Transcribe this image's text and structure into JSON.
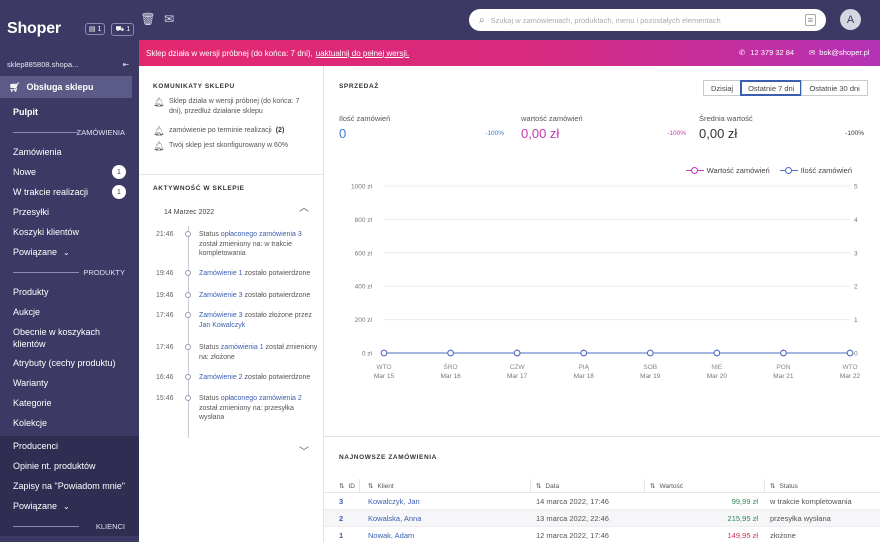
{
  "app": {
    "logo": "Shoper",
    "badge_docs": "1",
    "badge_cart": "1",
    "shop_name": "sklep885808.shopa...",
    "shop_service": "Obsługa sklepu"
  },
  "sidebar": {
    "items": [
      {
        "label": "Pulpit",
        "active": true
      },
      {
        "section": "ZAMÓWIENIA"
      },
      {
        "label": "Zamówienia"
      },
      {
        "label": "Nowe",
        "count": "1"
      },
      {
        "label": "W trakcie realizacji",
        "count": "1"
      },
      {
        "label": "Przesyłki"
      },
      {
        "label": "Koszyki klientów"
      },
      {
        "label": "Powiązane",
        "related": true
      },
      {
        "section": "PRODUKTY"
      },
      {
        "label": "Produkty"
      },
      {
        "label": "Aukcje"
      },
      {
        "label": "Obecnie w koszykach klientów",
        "tall": true
      },
      {
        "label": "Atrybuty (cechy produktu)"
      },
      {
        "label": "Warianty"
      },
      {
        "label": "Kategorie"
      },
      {
        "label": "Kolekcje"
      }
    ],
    "lower": [
      {
        "label": "Producenci"
      },
      {
        "label": "Opinie nt. produktów"
      },
      {
        "label": "Zapisy na \"Powiadom mnie\""
      },
      {
        "label": "Powiązane",
        "related": true
      },
      {
        "section": "KLIENCI"
      }
    ]
  },
  "search": {
    "placeholder": "Szukaj w zamówieniach, produktach, menu i pozostałych elementach"
  },
  "user": {
    "avatar_letter": "A"
  },
  "banner": {
    "text": "Sklep działa w wersji próbnej (do końca: 7 dni),",
    "link": "uaktualnij do pełnej wersji.",
    "phone": "12 379 32 84",
    "email": "bok@shoper.pl"
  },
  "messages": {
    "title": "KOMUNIKATY SKLEPU",
    "items": [
      {
        "text": "Sklep działa w wersji próbnej (do końca: 7 dni), przedłuż działanie sklepu",
        "count": ""
      },
      {
        "text": "zamówienie po terminie realizacji",
        "count": "(2)"
      },
      {
        "text": "Twój sklep jest skonfigurowany w 60%",
        "count": ""
      }
    ]
  },
  "activity": {
    "title": "AKTYWNOŚĆ W SKLEPIE",
    "date": "14 Marzec 2022",
    "items": [
      {
        "time": "21:46",
        "pre": "Status ",
        "link": "opłaconego zamówienia 3",
        "post": " został zmieniony na: w trakcie kompletowania"
      },
      {
        "time": "19:46",
        "pre": "",
        "link": "Zamówienie 1",
        "post": " zostało potwierdzone"
      },
      {
        "time": "19:46",
        "pre": "",
        "link": "Zamówienie 3",
        "post": " zostało potwierdzone"
      },
      {
        "time": "17:46",
        "pre": "",
        "link": "Zamówienie 3",
        "post": " zostało złożone przez ",
        "link2": "Jan Kowalczyk"
      },
      {
        "time": "17:46",
        "pre": "Status ",
        "link": "zamówienia 1",
        "post": " został zmieniony na: złożone"
      },
      {
        "time": "16:46",
        "pre": "",
        "link": "Zamówienie 2",
        "post": " zostało potwierdzone"
      },
      {
        "time": "15:46",
        "pre": "Status ",
        "link": "opłaconego zamówienia 2",
        "post": " został zmieniony na: przesyłka wysłana"
      }
    ]
  },
  "sales": {
    "title": "SPRZEDAŻ",
    "ranges": [
      {
        "label": "Dzisiaj"
      },
      {
        "label": "Ostatnie 7 dni",
        "active": true
      },
      {
        "label": "Ostatnie 30 dni"
      }
    ],
    "kpis": [
      {
        "label": "Ilość zamówień",
        "value": "0",
        "pct": "-100%",
        "color": "#3a7bd5"
      },
      {
        "label": "wartość zamówień",
        "value": "0,00 zł",
        "pct": "-100%",
        "color": "#c238b4"
      },
      {
        "label": "Średnia wartość",
        "value": "0,00 zł",
        "pct": "-100%",
        "color": "#333333"
      }
    ]
  },
  "chart_data": {
    "type": "line",
    "categories": [
      [
        "WTO",
        "Mar 15"
      ],
      [
        "ŚRO",
        "Mar 16"
      ],
      [
        "CZW",
        "Mar 17"
      ],
      [
        "PIĄ",
        "Mar 18"
      ],
      [
        "SOB",
        "Mar 19"
      ],
      [
        "NIE",
        "Mar 20"
      ],
      [
        "PON",
        "Mar 21"
      ],
      [
        "WTO",
        "Mar 22"
      ]
    ],
    "series": [
      {
        "name": "Wartość zamówień",
        "values": [
          0,
          0,
          0,
          0,
          0,
          0,
          0,
          0
        ],
        "color": "#c238b4",
        "axis": "left"
      },
      {
        "name": "Ilość zamówień",
        "values": [
          0,
          0,
          0,
          0,
          0,
          0,
          0,
          0
        ],
        "color": "#4a6fc7",
        "axis": "right"
      }
    ],
    "y_left_ticks": [
      "0 zł",
      "200 zł",
      "400 zł",
      "600 zł",
      "800 zł",
      "1000 zł"
    ],
    "y_right_ticks": [
      "0",
      "1",
      "2",
      "3",
      "4",
      "5"
    ],
    "ylim_left": [
      0,
      1000
    ],
    "ylim_right": [
      0,
      5
    ],
    "grid": true,
    "legend": "top-right"
  },
  "orders": {
    "title": "NAJNOWSZE ZAMÓWIENIA",
    "headers": [
      "ID",
      "Klient",
      "Data",
      "Wartość",
      "Status"
    ],
    "rows": [
      {
        "id": "3",
        "customer": "Kowalczyk, Jan",
        "date": "14 marca 2022, 17:46",
        "value": "99,99 zł",
        "status": "w trakcie kompletowania",
        "color": "#2e8b57"
      },
      {
        "id": "2",
        "customer": "Kowalska, Anna",
        "date": "13 marca 2022, 22:46",
        "value": "215,95 zł",
        "status": "przesyłka wysłana",
        "color": "#2e8b57"
      },
      {
        "id": "1",
        "customer": "Nowak, Adam",
        "date": "12 marca 2022, 17:46",
        "value": "149,95 zł",
        "status": "złożone",
        "color": "#d43050"
      }
    ]
  }
}
